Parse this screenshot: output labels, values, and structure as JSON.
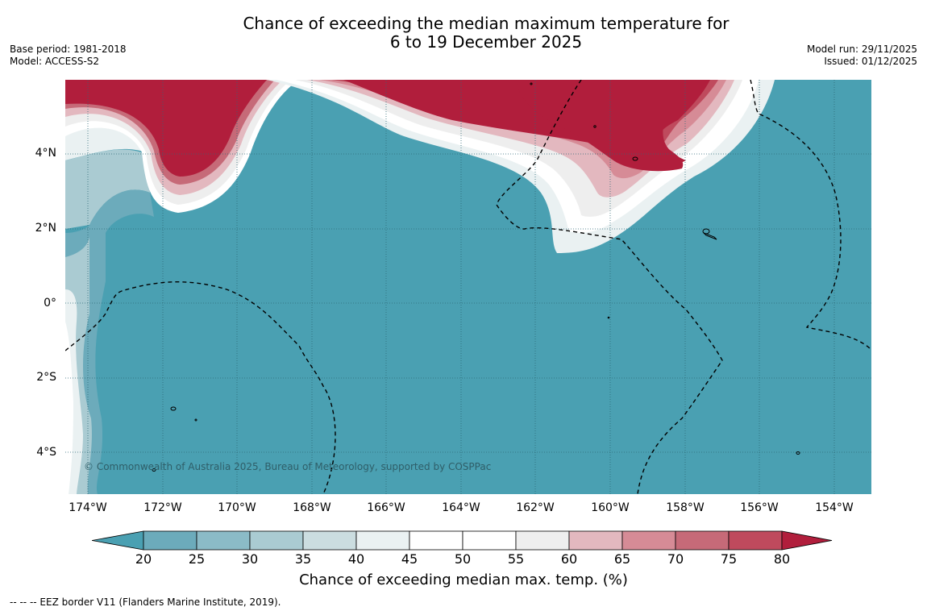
{
  "title": {
    "line1": "Chance of exceeding the median maximum temperature for",
    "line2": "6 to 19 December 2025"
  },
  "meta_left": {
    "base_period": "Base period: 1981-2018",
    "model": "Model: ACCESS-S2"
  },
  "meta_right": {
    "model_run": "Model run: 29/11/2025",
    "issued": "Issued: 01/12/2025"
  },
  "map": {
    "lat_ticks": [
      "4°N",
      "2°N",
      "0°",
      "2°S",
      "4°S"
    ],
    "lon_ticks": [
      "174°W",
      "172°W",
      "170°W",
      "168°W",
      "166°W",
      "164°W",
      "162°W",
      "160°W",
      "158°W",
      "156°W",
      "154°W"
    ],
    "copyright": "© Commonwealth of Australia 2025, Bureau of Meteorology, supported by COSPPac",
    "colors": {
      "below": "#4aa0b2",
      "above": "#b11e3c"
    }
  },
  "colorbar": {
    "ticks": [
      "20",
      "25",
      "30",
      "35",
      "40",
      "45",
      "50",
      "55",
      "60",
      "65",
      "70",
      "75",
      "80"
    ],
    "colors": [
      "#4aa0b2",
      "#6cabbb",
      "#8bbbc7",
      "#aacbd2",
      "#cbdde0",
      "#eaf1f2",
      "#ffffff",
      "#ffffff",
      "#eeeeee",
      "#e3b8bf",
      "#d68b96",
      "#c66a78",
      "#bf4a5d",
      "#b11e3c"
    ],
    "label": "Chance of exceeding median max. temp. (%)"
  },
  "footer": "--  --  -- EEZ border V11 (Flanders Marine Institute, 2019)."
}
